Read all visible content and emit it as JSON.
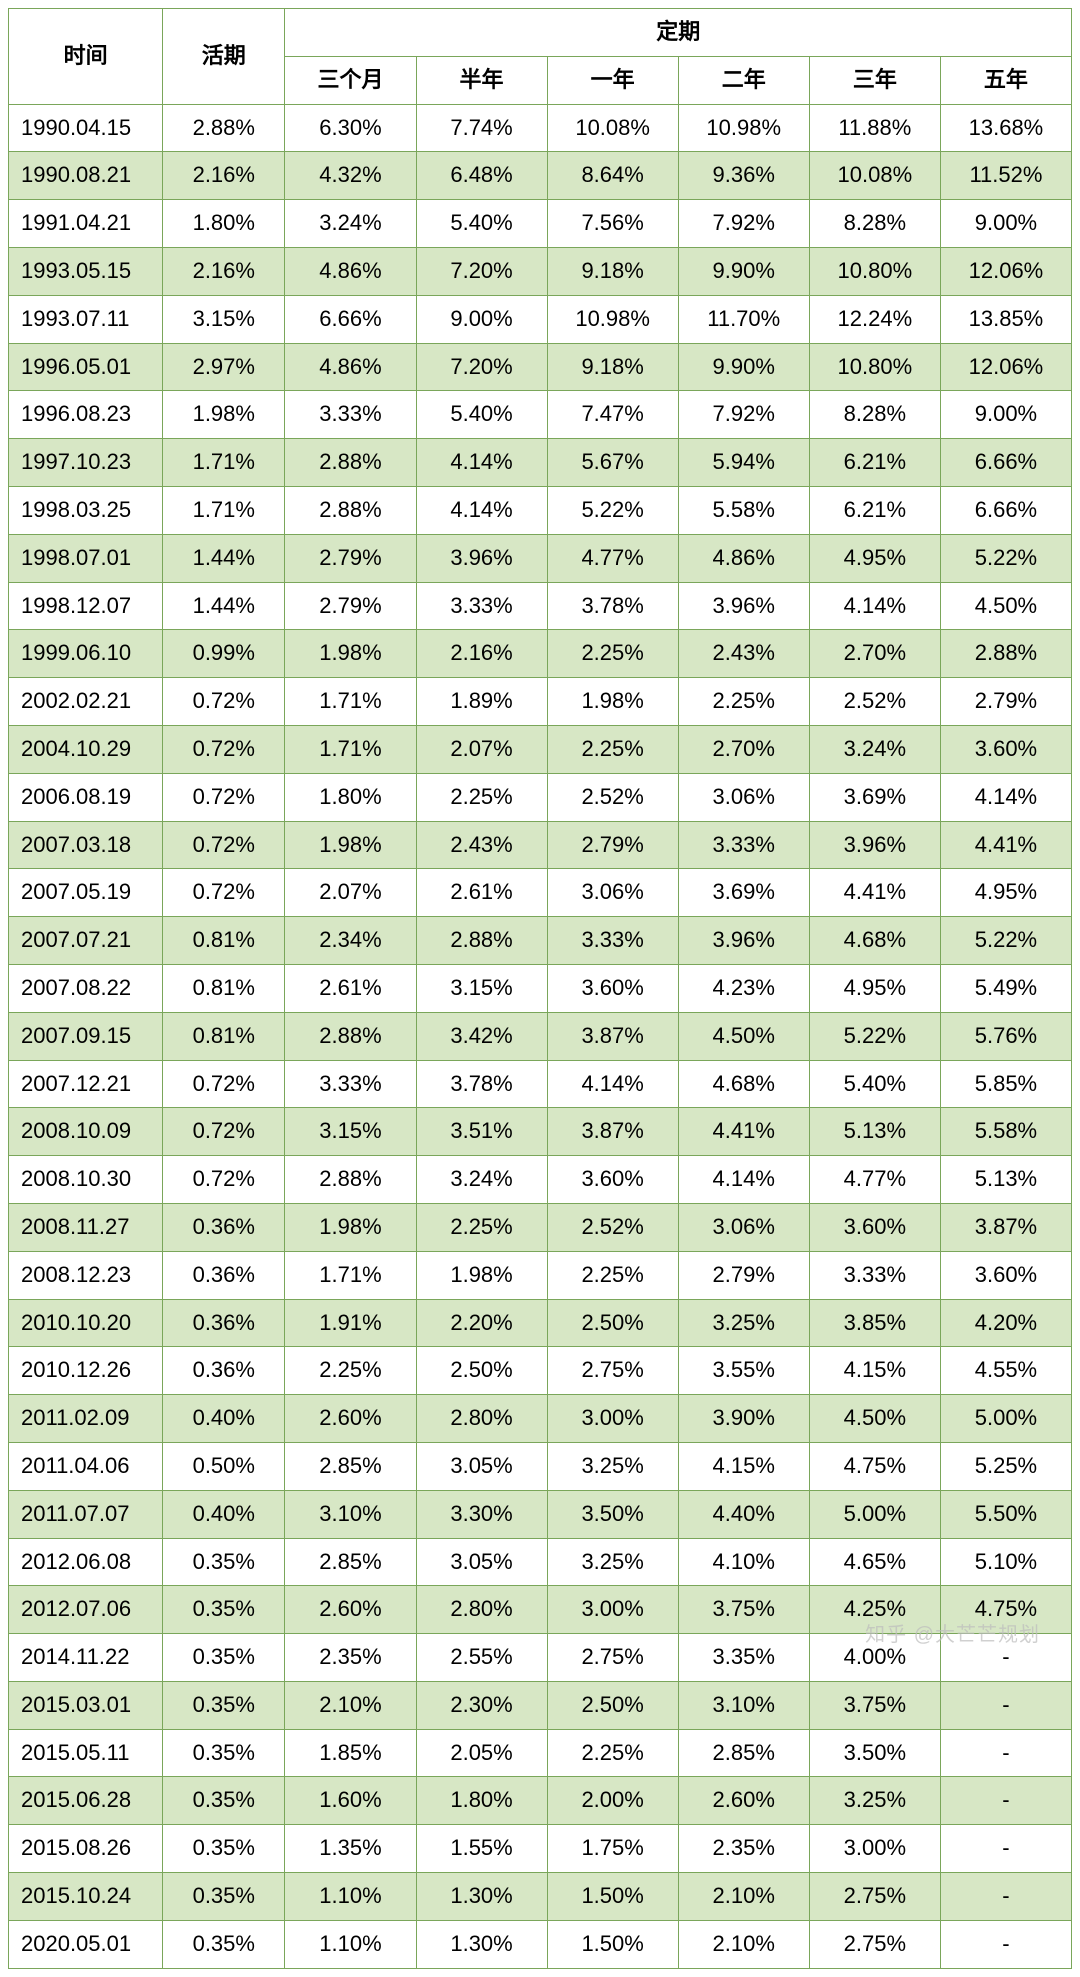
{
  "style": {
    "border_color": "#7aa65a",
    "alt_row_bg": "#d7e7c5",
    "header_fontsize": 24,
    "cell_fontsize": 22,
    "col_widths_pct": [
      14.5,
      11.5,
      12.33,
      12.33,
      12.33,
      12.33,
      12.33,
      12.33
    ]
  },
  "header": {
    "time": "时间",
    "demand": "活期",
    "fixed_group": "定期",
    "fixed_cols": [
      "三个月",
      "半年",
      "一年",
      "二年",
      "三年",
      "五年"
    ]
  },
  "rows": [
    {
      "date": "1990.04.15",
      "demand": "2.88%",
      "fixed": [
        "6.30%",
        "7.74%",
        "10.08%",
        "10.98%",
        "11.88%",
        "13.68%"
      ]
    },
    {
      "date": "1990.08.21",
      "demand": "2.16%",
      "fixed": [
        "4.32%",
        "6.48%",
        "8.64%",
        "9.36%",
        "10.08%",
        "11.52%"
      ]
    },
    {
      "date": "1991.04.21",
      "demand": "1.80%",
      "fixed": [
        "3.24%",
        "5.40%",
        "7.56%",
        "7.92%",
        "8.28%",
        "9.00%"
      ]
    },
    {
      "date": "1993.05.15",
      "demand": "2.16%",
      "fixed": [
        "4.86%",
        "7.20%",
        "9.18%",
        "9.90%",
        "10.80%",
        "12.06%"
      ]
    },
    {
      "date": "1993.07.11",
      "demand": "3.15%",
      "fixed": [
        "6.66%",
        "9.00%",
        "10.98%",
        "11.70%",
        "12.24%",
        "13.85%"
      ]
    },
    {
      "date": "1996.05.01",
      "demand": "2.97%",
      "fixed": [
        "4.86%",
        "7.20%",
        "9.18%",
        "9.90%",
        "10.80%",
        "12.06%"
      ]
    },
    {
      "date": "1996.08.23",
      "demand": "1.98%",
      "fixed": [
        "3.33%",
        "5.40%",
        "7.47%",
        "7.92%",
        "8.28%",
        "9.00%"
      ]
    },
    {
      "date": "1997.10.23",
      "demand": "1.71%",
      "fixed": [
        "2.88%",
        "4.14%",
        "5.67%",
        "5.94%",
        "6.21%",
        "6.66%"
      ]
    },
    {
      "date": "1998.03.25",
      "demand": "1.71%",
      "fixed": [
        "2.88%",
        "4.14%",
        "5.22%",
        "5.58%",
        "6.21%",
        "6.66%"
      ]
    },
    {
      "date": "1998.07.01",
      "demand": "1.44%",
      "fixed": [
        "2.79%",
        "3.96%",
        "4.77%",
        "4.86%",
        "4.95%",
        "5.22%"
      ]
    },
    {
      "date": "1998.12.07",
      "demand": "1.44%",
      "fixed": [
        "2.79%",
        "3.33%",
        "3.78%",
        "3.96%",
        "4.14%",
        "4.50%"
      ]
    },
    {
      "date": "1999.06.10",
      "demand": "0.99%",
      "fixed": [
        "1.98%",
        "2.16%",
        "2.25%",
        "2.43%",
        "2.70%",
        "2.88%"
      ]
    },
    {
      "date": "2002.02.21",
      "demand": "0.72%",
      "fixed": [
        "1.71%",
        "1.89%",
        "1.98%",
        "2.25%",
        "2.52%",
        "2.79%"
      ]
    },
    {
      "date": "2004.10.29",
      "demand": "0.72%",
      "fixed": [
        "1.71%",
        "2.07%",
        "2.25%",
        "2.70%",
        "3.24%",
        "3.60%"
      ]
    },
    {
      "date": "2006.08.19",
      "demand": "0.72%",
      "fixed": [
        "1.80%",
        "2.25%",
        "2.52%",
        "3.06%",
        "3.69%",
        "4.14%"
      ]
    },
    {
      "date": "2007.03.18",
      "demand": "0.72%",
      "fixed": [
        "1.98%",
        "2.43%",
        "2.79%",
        "3.33%",
        "3.96%",
        "4.41%"
      ]
    },
    {
      "date": "2007.05.19",
      "demand": "0.72%",
      "fixed": [
        "2.07%",
        "2.61%",
        "3.06%",
        "3.69%",
        "4.41%",
        "4.95%"
      ]
    },
    {
      "date": "2007.07.21",
      "demand": "0.81%",
      "fixed": [
        "2.34%",
        "2.88%",
        "3.33%",
        "3.96%",
        "4.68%",
        "5.22%"
      ]
    },
    {
      "date": "2007.08.22",
      "demand": "0.81%",
      "fixed": [
        "2.61%",
        "3.15%",
        "3.60%",
        "4.23%",
        "4.95%",
        "5.49%"
      ]
    },
    {
      "date": "2007.09.15",
      "demand": "0.81%",
      "fixed": [
        "2.88%",
        "3.42%",
        "3.87%",
        "4.50%",
        "5.22%",
        "5.76%"
      ]
    },
    {
      "date": "2007.12.21",
      "demand": "0.72%",
      "fixed": [
        "3.33%",
        "3.78%",
        "4.14%",
        "4.68%",
        "5.40%",
        "5.85%"
      ]
    },
    {
      "date": "2008.10.09",
      "demand": "0.72%",
      "fixed": [
        "3.15%",
        "3.51%",
        "3.87%",
        "4.41%",
        "5.13%",
        "5.58%"
      ]
    },
    {
      "date": "2008.10.30",
      "demand": "0.72%",
      "fixed": [
        "2.88%",
        "3.24%",
        "3.60%",
        "4.14%",
        "4.77%",
        "5.13%"
      ]
    },
    {
      "date": "2008.11.27",
      "demand": "0.36%",
      "fixed": [
        "1.98%",
        "2.25%",
        "2.52%",
        "3.06%",
        "3.60%",
        "3.87%"
      ]
    },
    {
      "date": "2008.12.23",
      "demand": "0.36%",
      "fixed": [
        "1.71%",
        "1.98%",
        "2.25%",
        "2.79%",
        "3.33%",
        "3.60%"
      ]
    },
    {
      "date": "2010.10.20",
      "demand": "0.36%",
      "fixed": [
        "1.91%",
        "2.20%",
        "2.50%",
        "3.25%",
        "3.85%",
        "4.20%"
      ]
    },
    {
      "date": "2010.12.26",
      "demand": "0.36%",
      "fixed": [
        "2.25%",
        "2.50%",
        "2.75%",
        "3.55%",
        "4.15%",
        "4.55%"
      ]
    },
    {
      "date": "2011.02.09",
      "demand": "0.40%",
      "fixed": [
        "2.60%",
        "2.80%",
        "3.00%",
        "3.90%",
        "4.50%",
        "5.00%"
      ]
    },
    {
      "date": "2011.04.06",
      "demand": "0.50%",
      "fixed": [
        "2.85%",
        "3.05%",
        "3.25%",
        "4.15%",
        "4.75%",
        "5.25%"
      ]
    },
    {
      "date": "2011.07.07",
      "demand": "0.40%",
      "fixed": [
        "3.10%",
        "3.30%",
        "3.50%",
        "4.40%",
        "5.00%",
        "5.50%"
      ]
    },
    {
      "date": "2012.06.08",
      "demand": "0.35%",
      "fixed": [
        "2.85%",
        "3.05%",
        "3.25%",
        "4.10%",
        "4.65%",
        "5.10%"
      ]
    },
    {
      "date": "2012.07.06",
      "demand": "0.35%",
      "fixed": [
        "2.60%",
        "2.80%",
        "3.00%",
        "3.75%",
        "4.25%",
        "4.75%"
      ]
    },
    {
      "date": "2014.11.22",
      "demand": "0.35%",
      "fixed": [
        "2.35%",
        "2.55%",
        "2.75%",
        "3.35%",
        "4.00%",
        "-"
      ]
    },
    {
      "date": "2015.03.01",
      "demand": "0.35%",
      "fixed": [
        "2.10%",
        "2.30%",
        "2.50%",
        "3.10%",
        "3.75%",
        "-"
      ]
    },
    {
      "date": "2015.05.11",
      "demand": "0.35%",
      "fixed": [
        "1.85%",
        "2.05%",
        "2.25%",
        "2.85%",
        "3.50%",
        "-"
      ]
    },
    {
      "date": "2015.06.28",
      "demand": "0.35%",
      "fixed": [
        "1.60%",
        "1.80%",
        "2.00%",
        "2.60%",
        "3.25%",
        "-"
      ]
    },
    {
      "date": "2015.08.26",
      "demand": "0.35%",
      "fixed": [
        "1.35%",
        "1.55%",
        "1.75%",
        "2.35%",
        "3.00%",
        "-"
      ]
    },
    {
      "date": "2015.10.24",
      "demand": "0.35%",
      "fixed": [
        "1.10%",
        "1.30%",
        "1.50%",
        "2.10%",
        "2.75%",
        "-"
      ]
    },
    {
      "date": "2020.05.01",
      "demand": "0.35%",
      "fixed": [
        "1.10%",
        "1.30%",
        "1.50%",
        "2.10%",
        "2.75%",
        "-"
      ]
    }
  ],
  "watermark": "知乎 @大芒芒规划"
}
